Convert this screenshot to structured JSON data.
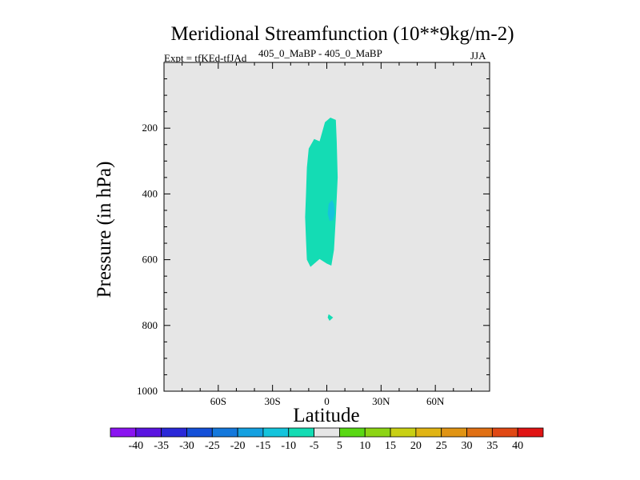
{
  "chart_data": {
    "type": "heatmap",
    "title": "Meridional Streamfunction (10**9kg/m-2)",
    "subtitle_left": "Expt = tfKEd-tfJAd",
    "subtitle_center": "405_0_MaBP - 405_0_MaBP",
    "subtitle_right": "JJA",
    "xlabel": "Latitude",
    "ylabel": "Pressure (in hPa)",
    "xlim": [
      -90,
      90
    ],
    "ylim": [
      1000,
      0
    ],
    "x_ticks": [
      {
        "value": -60,
        "label": "60S"
      },
      {
        "value": -30,
        "label": "30S"
      },
      {
        "value": 0,
        "label": "0"
      },
      {
        "value": 30,
        "label": "30N"
      },
      {
        "value": 60,
        "label": "60N"
      }
    ],
    "y_ticks": [
      {
        "value": 200,
        "label": "200"
      },
      {
        "value": 400,
        "label": "400"
      },
      {
        "value": 600,
        "label": "600"
      },
      {
        "value": 800,
        "label": "800"
      },
      {
        "value": 1000,
        "label": "1000"
      }
    ],
    "background_color": "#e6e6e6",
    "colorbar": {
      "levels": [
        -40,
        -35,
        -30,
        -25,
        -20,
        -15,
        -10,
        -5,
        5,
        10,
        15,
        20,
        25,
        30,
        35,
        40
      ],
      "colors": [
        "#8a14f0",
        "#5a14e0",
        "#2a28d8",
        "#1450d8",
        "#1478dc",
        "#14a0e0",
        "#14c4dc",
        "#14dcb4",
        "#e6e6e6",
        "#5ad814",
        "#8cd414",
        "#c8d014",
        "#e0b414",
        "#e09414",
        "#e07014",
        "#e04814",
        "#e01414"
      ]
    },
    "regions": [
      {
        "range": "-10 to -5",
        "color": "#14dcb4",
        "polygon": [
          [
            2,
            168
          ],
          [
            5,
            175
          ],
          [
            5.5,
            240
          ],
          [
            6,
            350
          ],
          [
            5,
            470
          ],
          [
            4,
            570
          ],
          [
            2.5,
            618
          ],
          [
            0,
            612
          ],
          [
            -4,
            598
          ],
          [
            -9,
            622
          ],
          [
            -11,
            600
          ],
          [
            -11.5,
            540
          ],
          [
            -12,
            470
          ],
          [
            -11.5,
            400
          ],
          [
            -11,
            320
          ],
          [
            -10,
            262
          ],
          [
            -7,
            233
          ],
          [
            -4,
            240
          ],
          [
            -1,
            182
          ]
        ]
      },
      {
        "range": "-15 to -10",
        "color": "#14c4dc",
        "polygon": [
          [
            3,
            418
          ],
          [
            4,
            432
          ],
          [
            4.5,
            458
          ],
          [
            3.5,
            480
          ],
          [
            1.5,
            482
          ],
          [
            0.5,
            460
          ],
          [
            1,
            430
          ]
        ]
      },
      {
        "range": "-10 to -5",
        "color": "#14dcb4",
        "polygon": [
          [
            1,
            766
          ],
          [
            3.5,
            776
          ],
          [
            1.5,
            786
          ],
          [
            0.5,
            776
          ]
        ]
      }
    ]
  }
}
